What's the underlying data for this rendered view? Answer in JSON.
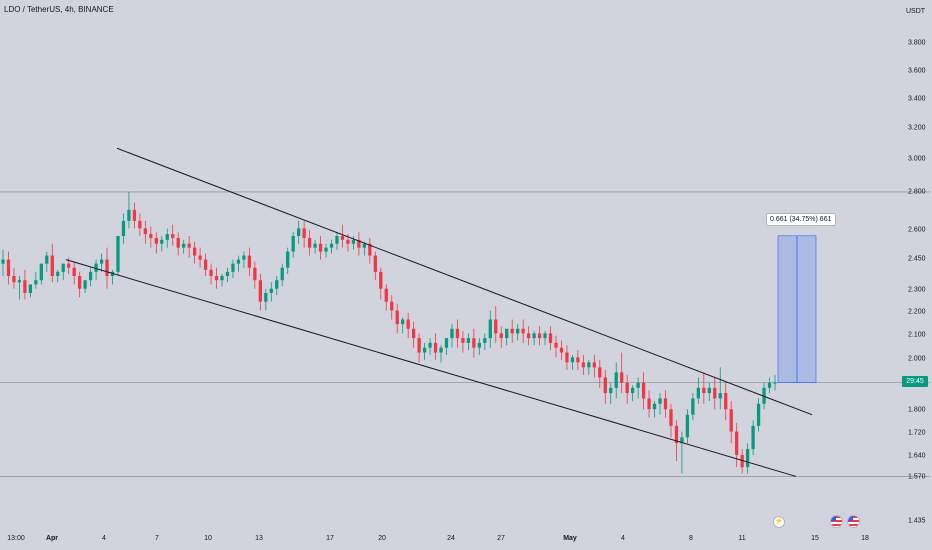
{
  "header": {
    "symbol": "LDO / TetherUS, 4h, BINANCE",
    "currency": "USDT"
  },
  "price_badge": "29:45",
  "measure_label": "0.661 (34.75%) 661",
  "icons": {
    "flash": "flash-icon",
    "flag": "us-flag-icon"
  },
  "colors": {
    "background": "#d1d4dc",
    "up": "#089981",
    "down": "#f23645",
    "trendline": "#131722",
    "measure_fill": "#2962ff"
  },
  "chart_data": {
    "type": "candlestick",
    "title": "LDO / TetherUS, 4h, BINANCE",
    "y_unit": "USDT",
    "y_scale": "log",
    "y_ticks": [
      "3.800",
      "3.600",
      "3.400",
      "3.200",
      "3.000",
      "2.800",
      "2.600",
      "2.450",
      "2.300",
      "2.200",
      "2.100",
      "2.000",
      "1.800",
      "1.720",
      "1.640",
      "1.570",
      "1.435"
    ],
    "x_ticks": [
      "13:00",
      "Apr",
      "4",
      "7",
      "10",
      "13",
      "17",
      "20",
      "24",
      "27",
      "May",
      "4",
      "8",
      "11",
      "15",
      "18"
    ],
    "horizontal_levels": [
      2.8,
      1.9,
      1.57
    ],
    "channel": {
      "upper": [
        {
          "date": "Apr 5",
          "price": 3.06
        },
        {
          "date": "May 14",
          "price": 1.78
        }
      ],
      "lower": [
        {
          "date": "Apr 1",
          "price": 2.44
        },
        {
          "date": "May 13",
          "price": 1.57
        }
      ]
    },
    "price_range_measurement": {
      "from": 1.9,
      "to": 2.561,
      "change": 0.661,
      "percent": 34.75,
      "ticks": 661
    },
    "current_price": 1.9,
    "grid": false,
    "legend": "none",
    "candles": [
      [
        2.42,
        2.49,
        2.44,
        2.36
      ],
      [
        2.44,
        2.48,
        2.36,
        2.32
      ],
      [
        2.36,
        2.4,
        2.33,
        2.3
      ],
      [
        2.33,
        2.36,
        2.34,
        2.25
      ],
      [
        2.34,
        2.39,
        2.28,
        2.25
      ],
      [
        2.28,
        2.31,
        2.32,
        2.26
      ],
      [
        2.32,
        2.38,
        2.34,
        2.3
      ],
      [
        2.34,
        2.4,
        2.42,
        2.32
      ],
      [
        2.42,
        2.48,
        2.46,
        2.38
      ],
      [
        2.46,
        2.52,
        2.36,
        2.33
      ],
      [
        2.36,
        2.39,
        2.38,
        2.33
      ],
      [
        2.38,
        2.42,
        2.42,
        2.34
      ],
      [
        2.42,
        2.45,
        2.4,
        2.37
      ],
      [
        2.4,
        2.43,
        2.36,
        2.32
      ],
      [
        2.36,
        2.38,
        2.3,
        2.26
      ],
      [
        2.3,
        2.33,
        2.34,
        2.28
      ],
      [
        2.34,
        2.4,
        2.38,
        2.31
      ],
      [
        2.38,
        2.44,
        2.42,
        2.34
      ],
      [
        2.42,
        2.47,
        2.44,
        2.38
      ],
      [
        2.44,
        2.5,
        2.36,
        2.3
      ],
      [
        2.36,
        2.39,
        2.38,
        2.32
      ],
      [
        2.38,
        2.48,
        2.56,
        2.36
      ],
      [
        2.56,
        2.68,
        2.64,
        2.52
      ],
      [
        2.64,
        2.8,
        2.7,
        2.6
      ],
      [
        2.7,
        2.74,
        2.64,
        2.6
      ],
      [
        2.64,
        2.68,
        2.6,
        2.56
      ],
      [
        2.6,
        2.64,
        2.57,
        2.52
      ],
      [
        2.57,
        2.61,
        2.55,
        2.5
      ],
      [
        2.55,
        2.58,
        2.52,
        2.47
      ],
      [
        2.52,
        2.56,
        2.54,
        2.48
      ],
      [
        2.54,
        2.6,
        2.57,
        2.5
      ],
      [
        2.57,
        2.62,
        2.55,
        2.51
      ],
      [
        2.55,
        2.58,
        2.5,
        2.46
      ],
      [
        2.5,
        2.54,
        2.52,
        2.47
      ],
      [
        2.52,
        2.56,
        2.5,
        2.45
      ],
      [
        2.5,
        2.53,
        2.46,
        2.42
      ],
      [
        2.46,
        2.5,
        2.44,
        2.4
      ],
      [
        2.44,
        2.47,
        2.39,
        2.36
      ],
      [
        2.39,
        2.42,
        2.36,
        2.32
      ],
      [
        2.36,
        2.4,
        2.34,
        2.3
      ],
      [
        2.34,
        2.37,
        2.36,
        2.31
      ],
      [
        2.36,
        2.4,
        2.38,
        2.33
      ],
      [
        2.38,
        2.44,
        2.42,
        2.35
      ],
      [
        2.42,
        2.46,
        2.44,
        2.38
      ],
      [
        2.44,
        2.48,
        2.46,
        2.4
      ],
      [
        2.46,
        2.5,
        2.4,
        2.36
      ],
      [
        2.4,
        2.43,
        2.34,
        2.3
      ],
      [
        2.34,
        2.37,
        2.24,
        2.2
      ],
      [
        2.24,
        2.3,
        2.28,
        2.2
      ],
      [
        2.28,
        2.33,
        2.3,
        2.24
      ],
      [
        2.3,
        2.36,
        2.34,
        2.27
      ],
      [
        2.34,
        2.42,
        2.4,
        2.31
      ],
      [
        2.4,
        2.5,
        2.48,
        2.37
      ],
      [
        2.48,
        2.58,
        2.56,
        2.45
      ],
      [
        2.56,
        2.64,
        2.6,
        2.52
      ],
      [
        2.6,
        2.64,
        2.55,
        2.5
      ],
      [
        2.55,
        2.59,
        2.5,
        2.46
      ],
      [
        2.5,
        2.54,
        2.52,
        2.47
      ],
      [
        2.52,
        2.56,
        2.48,
        2.44
      ],
      [
        2.48,
        2.52,
        2.5,
        2.45
      ],
      [
        2.5,
        2.54,
        2.52,
        2.47
      ],
      [
        2.52,
        2.58,
        2.56,
        2.49
      ],
      [
        2.56,
        2.62,
        2.54,
        2.5
      ],
      [
        2.54,
        2.57,
        2.52,
        2.48
      ],
      [
        2.52,
        2.56,
        2.54,
        2.49
      ],
      [
        2.54,
        2.58,
        2.5,
        2.46
      ],
      [
        2.5,
        2.53,
        2.52,
        2.46
      ],
      [
        2.52,
        2.55,
        2.46,
        2.42
      ],
      [
        2.46,
        2.48,
        2.38,
        2.34
      ],
      [
        2.38,
        2.4,
        2.3,
        2.25
      ],
      [
        2.3,
        2.32,
        2.24,
        2.2
      ],
      [
        2.24,
        2.27,
        2.2,
        2.16
      ],
      [
        2.2,
        2.23,
        2.14,
        2.1
      ],
      [
        2.14,
        2.17,
        2.16,
        2.1
      ],
      [
        2.16,
        2.19,
        2.12,
        2.08
      ],
      [
        2.12,
        2.15,
        2.08,
        2.04
      ],
      [
        2.08,
        2.1,
        2.02,
        1.98
      ],
      [
        2.02,
        2.06,
        2.04,
        1.99
      ],
      [
        2.04,
        2.08,
        2.06,
        2.01
      ],
      [
        2.06,
        2.1,
        2.02,
        1.99
      ],
      [
        2.02,
        2.05,
        2.04,
        1.98
      ],
      [
        2.04,
        2.08,
        2.08,
        2.01
      ],
      [
        2.08,
        2.14,
        2.12,
        2.04
      ],
      [
        2.12,
        2.16,
        2.08,
        2.04
      ],
      [
        2.08,
        2.11,
        2.06,
        2.02
      ],
      [
        2.06,
        2.1,
        2.08,
        2.03
      ],
      [
        2.08,
        2.12,
        2.04,
        2.0
      ],
      [
        2.04,
        2.08,
        2.06,
        2.01
      ],
      [
        2.06,
        2.1,
        2.08,
        2.03
      ],
      [
        2.08,
        2.2,
        2.16,
        2.04
      ],
      [
        2.16,
        2.22,
        2.1,
        2.06
      ],
      [
        2.1,
        2.13,
        2.08,
        2.04
      ],
      [
        2.08,
        2.12,
        2.12,
        2.05
      ],
      [
        2.12,
        2.16,
        2.1,
        2.06
      ],
      [
        2.1,
        2.14,
        2.12,
        2.07
      ],
      [
        2.12,
        2.16,
        2.1,
        2.06
      ],
      [
        2.1,
        2.13,
        2.08,
        2.05
      ],
      [
        2.08,
        2.11,
        2.1,
        2.05
      ],
      [
        2.1,
        2.13,
        2.08,
        2.05
      ],
      [
        2.08,
        2.11,
        2.1,
        2.05
      ],
      [
        2.1,
        2.13,
        2.06,
        2.03
      ],
      [
        2.06,
        2.09,
        2.04,
        2.0
      ],
      [
        2.04,
        2.07,
        2.02,
        1.99
      ],
      [
        2.02,
        2.05,
        1.98,
        1.95
      ],
      [
        1.98,
        2.01,
        2.0,
        1.95
      ],
      [
        2.0,
        2.03,
        1.98,
        1.95
      ],
      [
        1.98,
        2.01,
        1.96,
        1.93
      ],
      [
        1.96,
        1.99,
        1.98,
        1.93
      ],
      [
        1.98,
        2.01,
        1.96,
        1.92
      ],
      [
        1.96,
        1.99,
        1.92,
        1.88
      ],
      [
        1.92,
        1.95,
        1.86,
        1.82
      ],
      [
        1.86,
        1.9,
        1.88,
        1.82
      ],
      [
        1.88,
        1.98,
        1.94,
        1.84
      ],
      [
        1.94,
        2.02,
        1.9,
        1.86
      ],
      [
        1.9,
        1.93,
        1.86,
        1.82
      ],
      [
        1.86,
        1.89,
        1.88,
        1.83
      ],
      [
        1.88,
        1.92,
        1.9,
        1.84
      ],
      [
        1.9,
        1.94,
        1.84,
        1.8
      ],
      [
        1.84,
        1.87,
        1.8,
        1.77
      ],
      [
        1.8,
        1.83,
        1.82,
        1.77
      ],
      [
        1.82,
        1.86,
        1.84,
        1.78
      ],
      [
        1.84,
        1.87,
        1.8,
        1.77
      ],
      [
        1.8,
        1.82,
        1.74,
        1.7
      ],
      [
        1.74,
        1.76,
        1.68,
        1.62
      ],
      [
        1.68,
        1.72,
        1.7,
        1.58
      ],
      [
        1.7,
        1.8,
        1.78,
        1.68
      ],
      [
        1.78,
        1.86,
        1.84,
        1.76
      ],
      [
        1.84,
        1.92,
        1.88,
        1.82
      ],
      [
        1.88,
        1.94,
        1.86,
        1.82
      ],
      [
        1.86,
        1.9,
        1.88,
        1.83
      ],
      [
        1.88,
        1.92,
        1.84,
        1.8
      ],
      [
        1.84,
        1.96,
        1.86,
        1.8
      ],
      [
        1.86,
        1.9,
        1.8,
        1.76
      ],
      [
        1.8,
        1.83,
        1.72,
        1.68
      ],
      [
        1.72,
        1.75,
        1.64,
        1.6
      ],
      [
        1.64,
        1.66,
        1.6,
        1.58
      ],
      [
        1.6,
        1.68,
        1.66,
        1.58
      ],
      [
        1.66,
        1.76,
        1.74,
        1.64
      ],
      [
        1.74,
        1.84,
        1.82,
        1.72
      ],
      [
        1.82,
        1.9,
        1.88,
        1.8
      ],
      [
        1.88,
        1.92,
        1.9,
        1.86
      ],
      [
        1.9,
        1.93,
        1.9,
        1.87
      ]
    ]
  }
}
